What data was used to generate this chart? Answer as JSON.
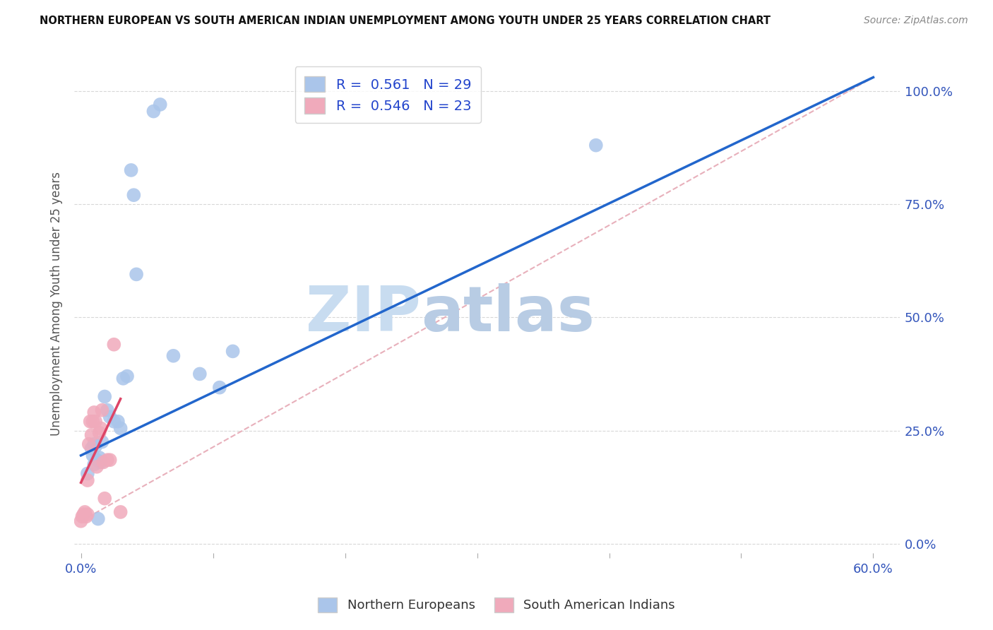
{
  "title": "NORTHERN EUROPEAN VS SOUTH AMERICAN INDIAN UNEMPLOYMENT AMONG YOUTH UNDER 25 YEARS CORRELATION CHART",
  "source": "Source: ZipAtlas.com",
  "ylabel": "Unemployment Among Youth under 25 years",
  "blue_R": "0.561",
  "blue_N": "29",
  "pink_R": "0.546",
  "pink_N": "23",
  "blue_color": "#aac5ea",
  "pink_color": "#f0aabb",
  "blue_line_color": "#2266cc",
  "pink_line_color": "#dd4466",
  "ref_line_color": "#e8b0bb",
  "watermark_zip": "ZIP",
  "watermark_atlas": "atlas",
  "blue_points_x": [
    0.005,
    0.008,
    0.009,
    0.01,
    0.01,
    0.011,
    0.012,
    0.013,
    0.014,
    0.015,
    0.016,
    0.018,
    0.02,
    0.022,
    0.025,
    0.028,
    0.03,
    0.032,
    0.035,
    0.038,
    0.04,
    0.042,
    0.055,
    0.06,
    0.07,
    0.09,
    0.105,
    0.115,
    0.39
  ],
  "blue_points_y": [
    0.155,
    0.21,
    0.195,
    0.22,
    0.175,
    0.215,
    0.185,
    0.055,
    0.19,
    0.18,
    0.225,
    0.325,
    0.295,
    0.28,
    0.27,
    0.27,
    0.255,
    0.365,
    0.37,
    0.825,
    0.77,
    0.595,
    0.955,
    0.97,
    0.415,
    0.375,
    0.345,
    0.425,
    0.88
  ],
  "pink_points_x": [
    0.0,
    0.001,
    0.002,
    0.003,
    0.004,
    0.005,
    0.005,
    0.006,
    0.007,
    0.008,
    0.009,
    0.01,
    0.011,
    0.012,
    0.014,
    0.015,
    0.016,
    0.017,
    0.018,
    0.02,
    0.022,
    0.025,
    0.03
  ],
  "pink_points_y": [
    0.05,
    0.06,
    0.065,
    0.07,
    0.06,
    0.065,
    0.14,
    0.22,
    0.27,
    0.24,
    0.27,
    0.29,
    0.27,
    0.17,
    0.245,
    0.255,
    0.295,
    0.18,
    0.1,
    0.185,
    0.185,
    0.44,
    0.07
  ],
  "blue_line_x0": 0.0,
  "blue_line_y0": 0.195,
  "blue_line_x1": 0.6,
  "blue_line_y1": 1.03,
  "pink_line_x0": 0.0,
  "pink_line_y0": 0.135,
  "pink_line_x1": 0.03,
  "pink_line_y1": 0.32,
  "ref_line_x0": 0.0,
  "ref_line_y0": 0.05,
  "ref_line_x1": 0.6,
  "ref_line_y1": 1.03,
  "xlim": [
    -0.005,
    0.62
  ],
  "ylim": [
    -0.02,
    1.08
  ],
  "xtick_positions": [
    0.0,
    0.1,
    0.2,
    0.3,
    0.4,
    0.5,
    0.6
  ],
  "xtick_labels": [
    "0.0%",
    "",
    "",
    "",
    "",
    "",
    "60.0%"
  ],
  "ytick_positions": [
    0.0,
    0.25,
    0.5,
    0.75,
    1.0
  ],
  "ytick_labels": [
    "0.0%",
    "25.0%",
    "50.0%",
    "75.0%",
    "100.0%"
  ],
  "figsize": [
    14.06,
    8.92
  ],
  "dpi": 100
}
